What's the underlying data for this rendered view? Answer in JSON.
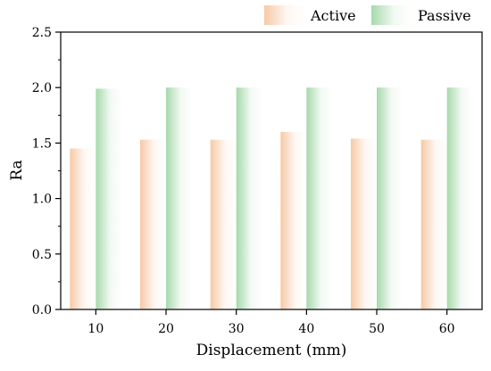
{
  "chart_data": {
    "type": "bar",
    "categories": [
      "10",
      "20",
      "30",
      "40",
      "50",
      "60"
    ],
    "series": [
      {
        "name": "Active",
        "values": [
          1.45,
          1.53,
          1.53,
          1.6,
          1.54,
          1.53
        ],
        "color": "#f7c9a6"
      },
      {
        "name": "Passive",
        "values": [
          1.99,
          2.0,
          2.0,
          2.0,
          2.0,
          2.0
        ],
        "color": "#a6d9ab"
      }
    ],
    "xlabel": "Displacement (mm)",
    "ylabel": "Ra",
    "ylim": [
      0,
      2.5
    ],
    "yticks": [
      "0.0",
      "0.5",
      "1.0",
      "1.5",
      "2.0",
      "2.5"
    ],
    "grid": false,
    "legend_position": "top-right"
  }
}
